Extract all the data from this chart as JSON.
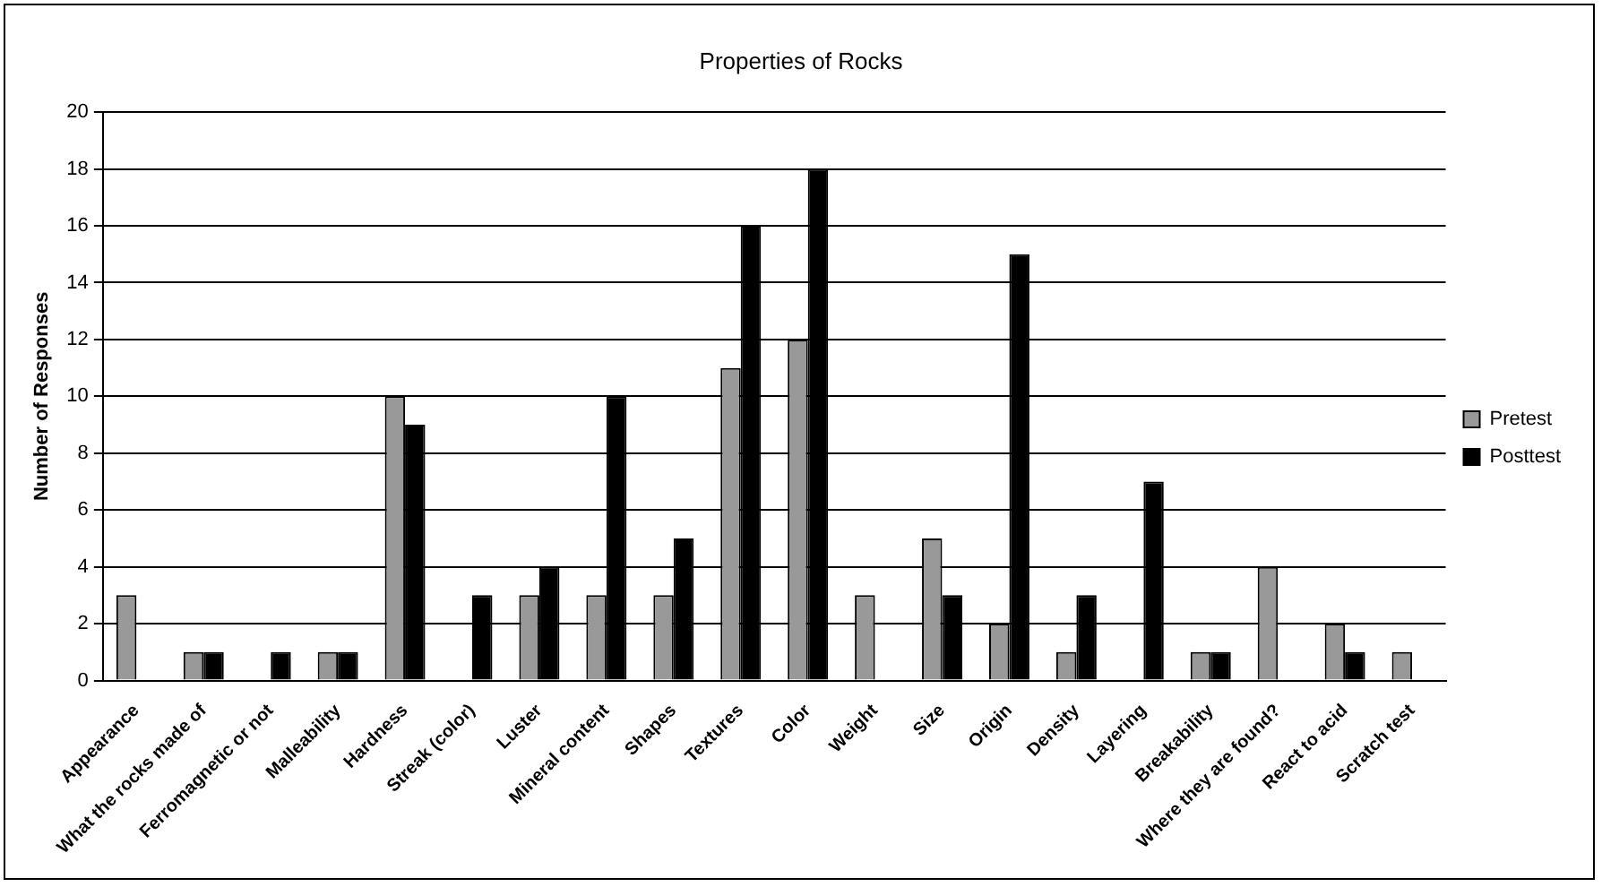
{
  "chart_data": {
    "type": "bar",
    "title": "Properties of Rocks",
    "ylabel": "Number of Responses",
    "categories": [
      "Appearance",
      "What the rocks made of",
      "Ferromagnetic or not",
      "Malleability",
      "Hardness",
      "Streak (color)",
      "Luster",
      "Mineral content",
      "Shapes",
      "Textures",
      "Color",
      "Weight",
      "Size",
      "Origin",
      "Density",
      "Layering",
      "Breakability",
      "Where they are found?",
      "React to acid",
      "Scratch test"
    ],
    "series": [
      {
        "name": "Pretest",
        "color": "#999999",
        "values": [
          3,
          1,
          0,
          1,
          10,
          0,
          3,
          3,
          3,
          11,
          12,
          3,
          5,
          2,
          1,
          0,
          1,
          4,
          2,
          1
        ]
      },
      {
        "name": "Posttest",
        "color": "#000000",
        "values": [
          0,
          1,
          1,
          1,
          9,
          3,
          4,
          10,
          5,
          16,
          18,
          0,
          3,
          15,
          3,
          7,
          1,
          0,
          1,
          0
        ]
      }
    ],
    "ylim": [
      0,
      20
    ],
    "yticks": [
      0,
      2,
      4,
      6,
      8,
      10,
      12,
      14,
      16,
      18,
      20
    ],
    "grid": "y",
    "legend": "right"
  }
}
